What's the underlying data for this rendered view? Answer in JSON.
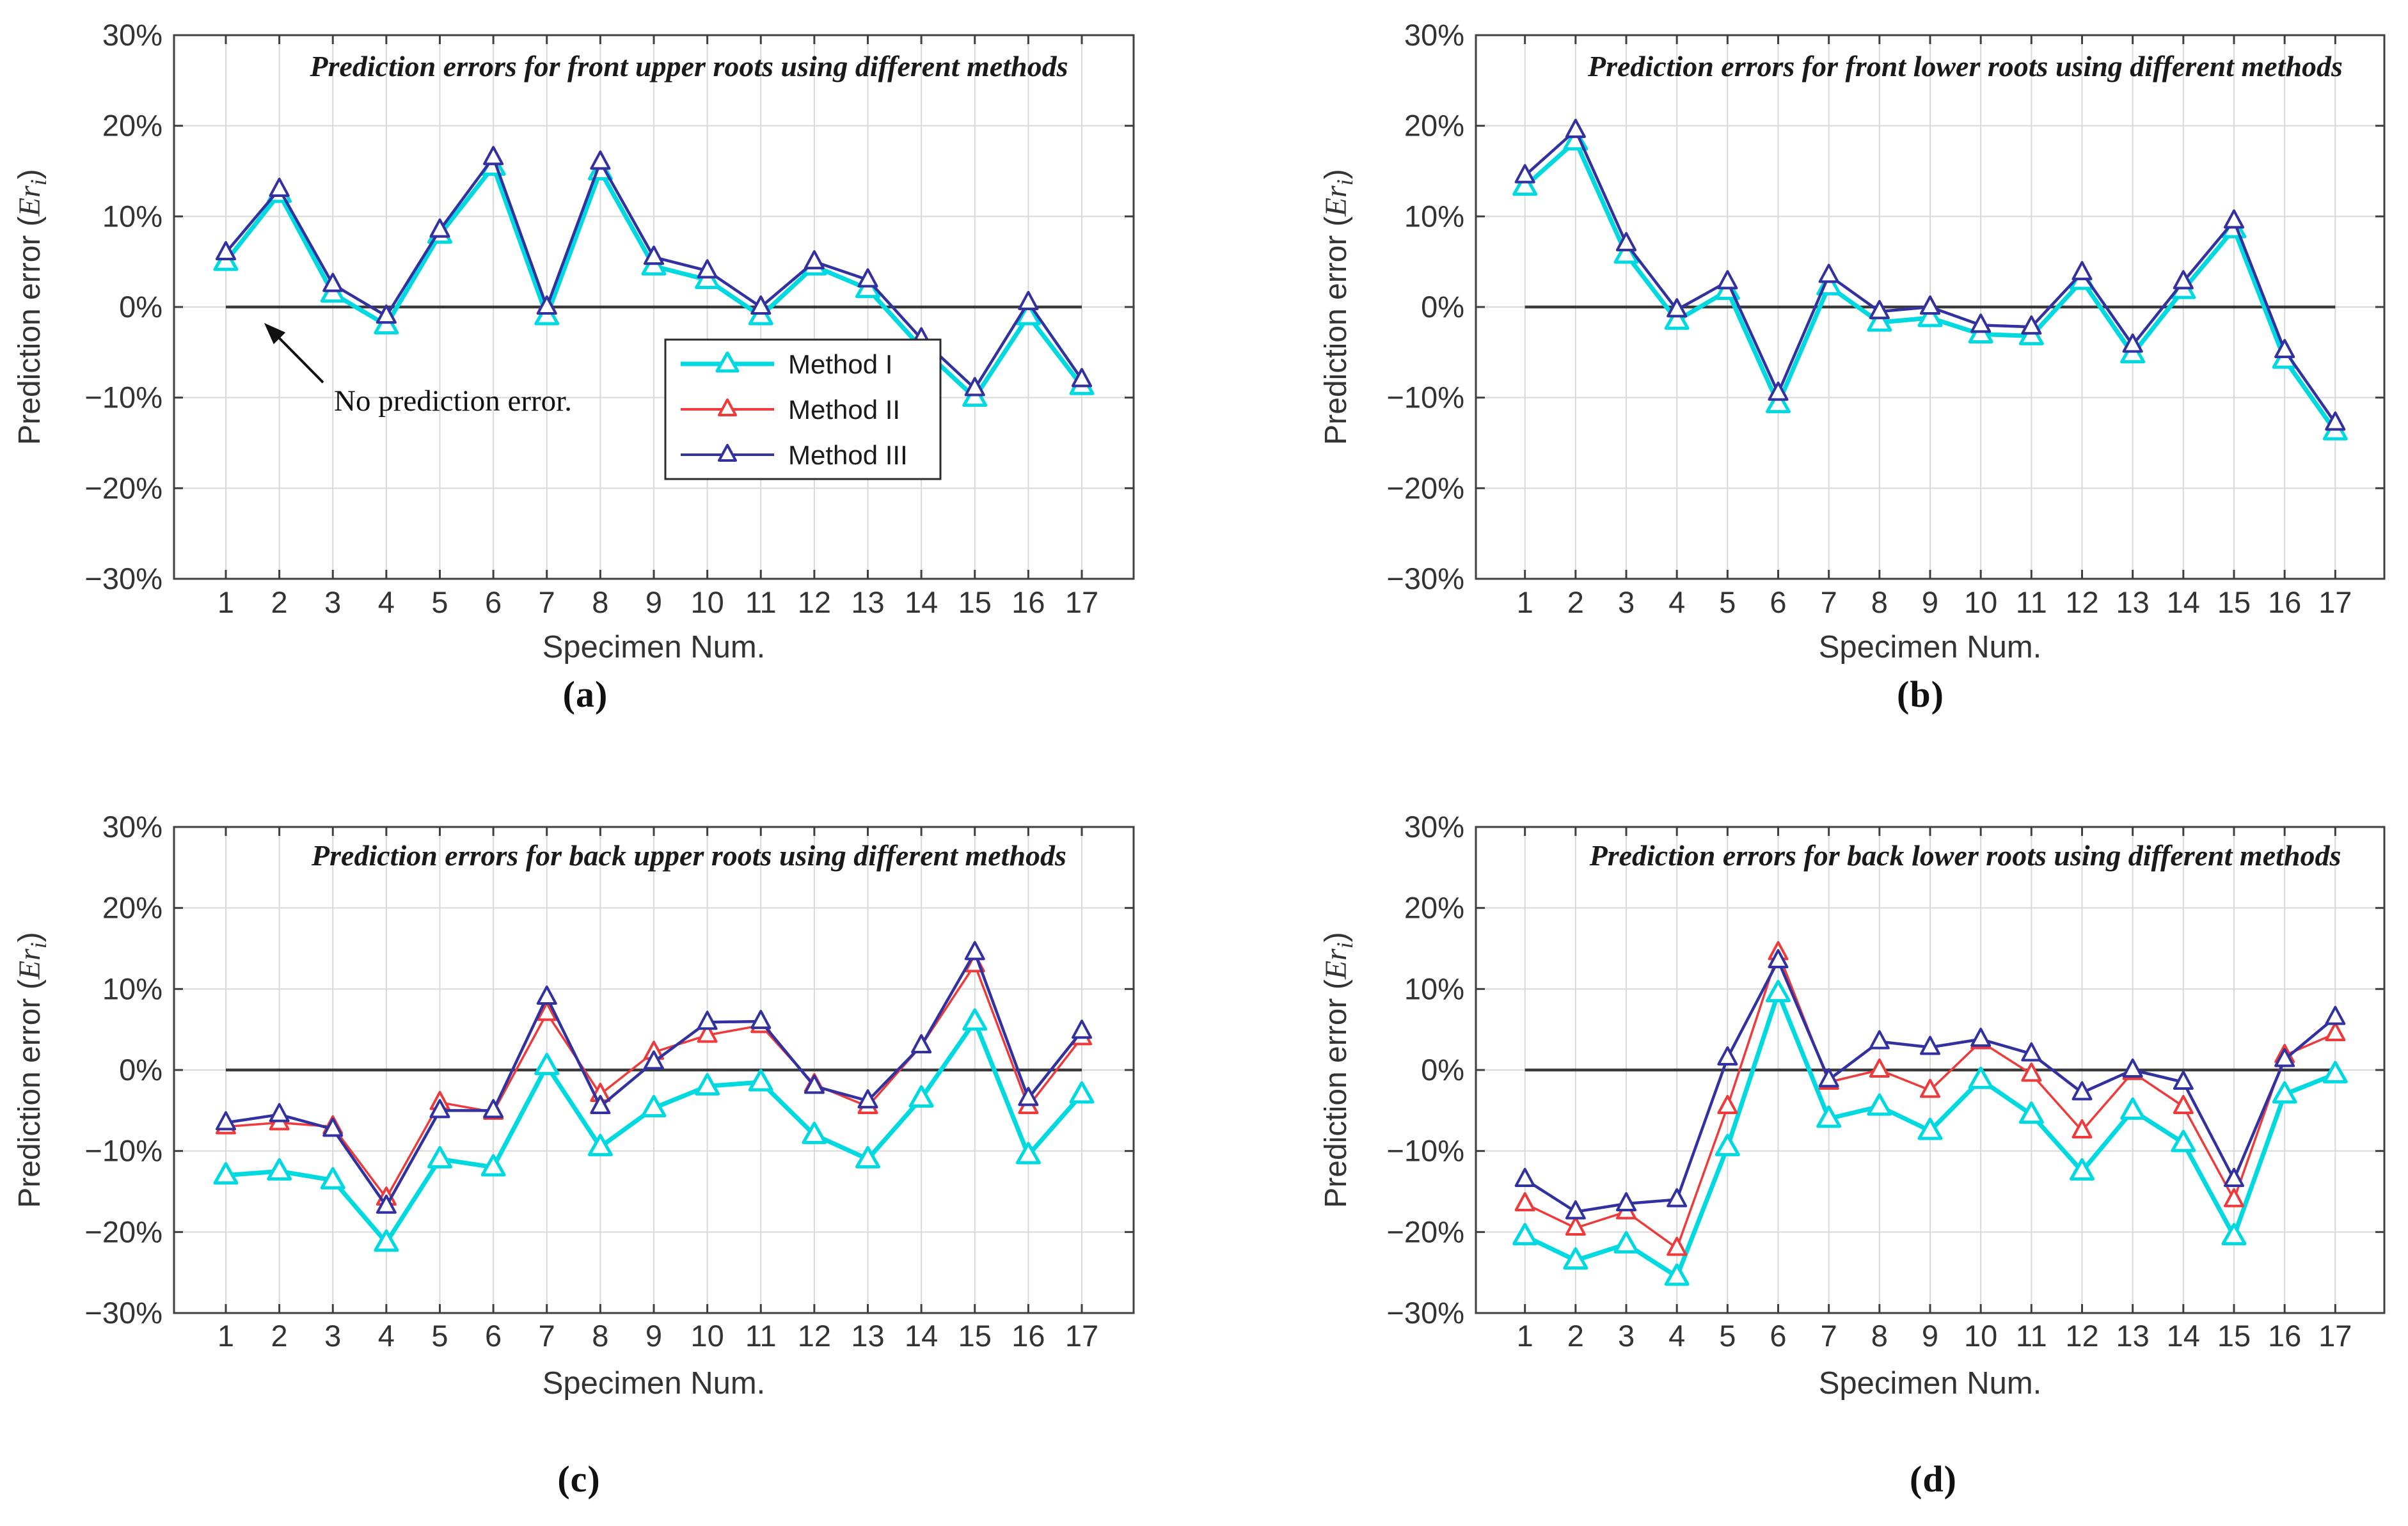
{
  "figure": {
    "background": "#ffffff",
    "axis_color": "#3f3f3f",
    "grid_color": "#d9d9d9",
    "zero_line_color": "#3a3a3a",
    "text_color": "#333333",
    "xlabel": "Specimen Num.",
    "ylabel": "Prediction error (Erᵢ)",
    "ylabel_parts": {
      "prefix": "Prediction error (",
      "var": "Er",
      "sub": "i",
      "suffix": ")"
    },
    "x_ticks": [
      "1",
      "2",
      "3",
      "4",
      "5",
      "6",
      "7",
      "8",
      "9",
      "10",
      "11",
      "12",
      "13",
      "14",
      "15",
      "16",
      "17"
    ],
    "y_tick_values": [
      30,
      20,
      10,
      0,
      -10,
      -20,
      -30
    ],
    "y_tick_labels": [
      "30%",
      "20%",
      "10%",
      "0%",
      "−10%",
      "−20%",
      "−30%"
    ]
  },
  "legend": {
    "position": "inside-lower-middle",
    "items": [
      {
        "label": "Method I",
        "color": "#00d9e0"
      },
      {
        "label": "Method II",
        "color": "#ee3a3a"
      },
      {
        "label": "Method III",
        "color": "#3231a0"
      }
    ]
  },
  "annotation": {
    "text": "No prediction error.",
    "points_to": "zero error line"
  },
  "chart_data": [
    {
      "id": "a",
      "caption": "(a)",
      "type": "line",
      "title": "Prediction errors for front upper roots using different methods",
      "xlabel": "Specimen Num.",
      "ylabel": "Prediction error (Erᵢ)",
      "ylim": [
        -30,
        30
      ],
      "grid": true,
      "legend_visible": true,
      "annotation_text": "No prediction error.",
      "x": [
        1,
        2,
        3,
        4,
        5,
        6,
        7,
        8,
        9,
        10,
        11,
        12,
        13,
        14,
        15,
        16,
        17
      ],
      "series": [
        {
          "name": "Method I",
          "color": "#00d9e0",
          "values": [
            5,
            12.5,
            1.5,
            -2,
            8,
            15.5,
            -1,
            15,
            4.5,
            3,
            -1,
            4.5,
            2,
            -4.5,
            -10,
            -1,
            -8.7
          ]
        },
        {
          "name": "Method II",
          "color": "#ee3a3a",
          "values": [
            6,
            13,
            2.5,
            -1,
            8.5,
            16.5,
            0,
            16,
            5.5,
            4,
            0,
            5,
            3,
            -3.5,
            -9,
            0.5,
            -8
          ]
        },
        {
          "name": "Method III",
          "color": "#3231a0",
          "values": [
            6,
            13,
            2.5,
            -1,
            8.5,
            16.5,
            0,
            16,
            5.5,
            4,
            0,
            5,
            3,
            -3.5,
            -9,
            0.5,
            -8
          ]
        }
      ]
    },
    {
      "id": "b",
      "caption": "(b)",
      "type": "line",
      "title": "Prediction errors for front lower roots using different methods",
      "xlabel": "Specimen Num.",
      "ylabel": "Prediction error (Erᵢ)",
      "ylim": [
        -30,
        30
      ],
      "grid": true,
      "legend_visible": false,
      "annotation_text": null,
      "x": [
        1,
        2,
        3,
        4,
        5,
        6,
        7,
        8,
        9,
        10,
        11,
        12,
        13,
        14,
        15,
        16,
        17
      ],
      "series": [
        {
          "name": "Method I",
          "color": "#00d9e0",
          "values": [
            13.3,
            18.3,
            5.8,
            -1.5,
            1.8,
            -10.7,
            2.3,
            -1.7,
            -1.2,
            -3,
            -3.2,
            2.9,
            -5.2,
            1.9,
            8.6,
            -5.8,
            -13.7
          ]
        },
        {
          "name": "Method II",
          "color": "#ee3a3a",
          "values": [
            14.5,
            19.5,
            7,
            -0.3,
            2.8,
            -9.5,
            3.5,
            -0.5,
            0,
            -2,
            -2.2,
            3.8,
            -4.2,
            2.8,
            9.5,
            -4.8,
            -12.8
          ]
        },
        {
          "name": "Method III",
          "color": "#3231a0",
          "values": [
            14.5,
            19.5,
            7,
            -0.3,
            2.8,
            -9.5,
            3.5,
            -0.5,
            0,
            -2,
            -2.2,
            3.8,
            -4.2,
            2.8,
            9.5,
            -4.8,
            -12.8
          ]
        }
      ]
    },
    {
      "id": "c",
      "caption": "(c)",
      "type": "line",
      "title": "Prediction errors for back upper roots using different methods",
      "xlabel": "Specimen Num.",
      "ylabel": "Prediction error (Erᵢ)",
      "ylim": [
        -30,
        30
      ],
      "grid": true,
      "legend_visible": false,
      "annotation_text": null,
      "x": [
        1,
        2,
        3,
        4,
        5,
        6,
        7,
        8,
        9,
        10,
        11,
        12,
        13,
        14,
        15,
        16,
        17
      ],
      "series": [
        {
          "name": "Method I",
          "color": "#00d9e0",
          "values": [
            -13,
            -12.5,
            -13.6,
            -21.3,
            -11,
            -12,
            0.5,
            -9.5,
            -4.7,
            -2,
            -1.5,
            -8,
            -11,
            -3.5,
            6,
            -10.5,
            -3
          ]
        },
        {
          "name": "Method II",
          "color": "#ee3a3a",
          "values": [
            -7,
            -6.5,
            -7,
            -15.8,
            -4,
            -5.2,
            7,
            -3,
            2.2,
            4.3,
            5.5,
            -1.8,
            -4.5,
            3,
            13,
            -4.5,
            4
          ]
        },
        {
          "name": "Method III",
          "color": "#3231a0",
          "values": [
            -6.5,
            -5.5,
            -7.3,
            -16.8,
            -5,
            -5,
            9,
            -4.5,
            1,
            5.9,
            6,
            -2,
            -3.8,
            3,
            14.5,
            -3.5,
            4.8
          ]
        }
      ]
    },
    {
      "id": "d",
      "caption": "(d)",
      "type": "line",
      "title": "Prediction errors for back lower roots using different methods",
      "xlabel": "Specimen Num.",
      "ylabel": "Prediction error (Erᵢ)",
      "ylim": [
        -30,
        30
      ],
      "grid": true,
      "legend_visible": false,
      "annotation_text": null,
      "x": [
        1,
        2,
        3,
        4,
        5,
        6,
        7,
        8,
        9,
        10,
        11,
        12,
        13,
        14,
        15,
        16,
        17
      ],
      "series": [
        {
          "name": "Method I",
          "color": "#00d9e0",
          "values": [
            -20.5,
            -23.5,
            -21.5,
            -25.5,
            -9.5,
            9.5,
            -6,
            -4.5,
            -7.5,
            -1.2,
            -5.5,
            -12.5,
            -5,
            -9,
            -20.5,
            -3,
            -0.5
          ]
        },
        {
          "name": "Method II",
          "color": "#ee3a3a",
          "values": [
            -16.5,
            -19.5,
            -17.5,
            -22,
            -4.5,
            14.5,
            -1.5,
            0,
            -2.5,
            3.5,
            -0.5,
            -7.5,
            -0.3,
            -4.5,
            -16,
            1.8,
            4.5
          ]
        },
        {
          "name": "Method III",
          "color": "#3231a0",
          "values": [
            -13.5,
            -17.5,
            -16.5,
            -16,
            1.5,
            13.5,
            -1.2,
            3.5,
            2.8,
            3.8,
            2,
            -2.8,
            0,
            -1.5,
            -13.5,
            1.3,
            6.5
          ]
        }
      ]
    }
  ]
}
